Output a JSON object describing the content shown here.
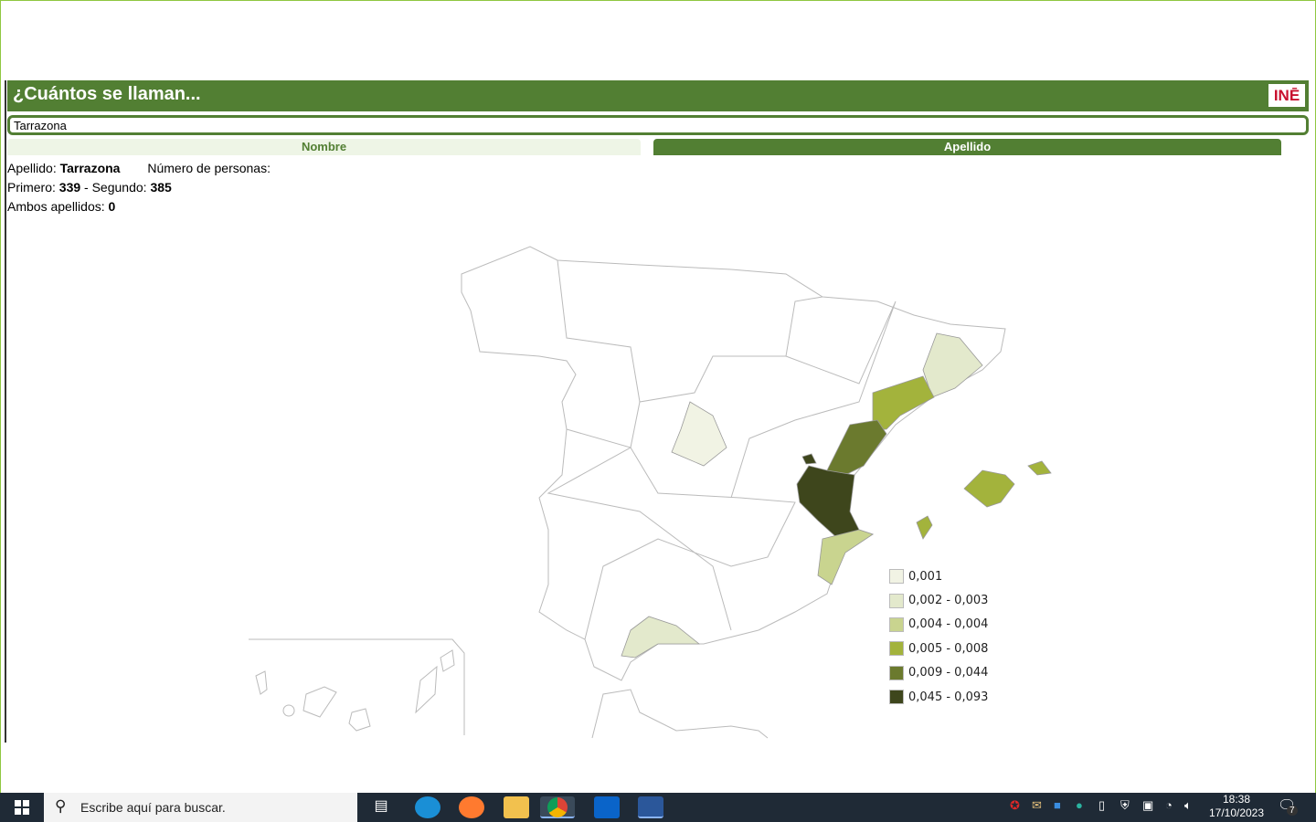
{
  "header": {
    "title": "¿Cuántos se llaman...",
    "logo": "INE"
  },
  "search": {
    "value": "Tarrazona"
  },
  "tabs": [
    {
      "label": "Nombre",
      "active": false
    },
    {
      "label": "Apellido",
      "active": true
    }
  ],
  "info": {
    "apellido_label": "Apellido:",
    "apellido": "Tarrazona",
    "numero_label": "Número de personas:",
    "primero_label": "Primero:",
    "primero": "339",
    "segundo_label": "- Segundo:",
    "segundo": "385",
    "ambos_label": "Ambos apellidos:",
    "ambos": "0"
  },
  "legend": [
    {
      "label": "0,001",
      "color": "#f1f3e4"
    },
    {
      "label": "0,002 - 0,003",
      "color": "#e3e9cc"
    },
    {
      "label": "0,004 - 0,004",
      "color": "#c9d48f"
    },
    {
      "label": "0,005 - 0,008",
      "color": "#a3b33c"
    },
    {
      "label": "0,009 - 0,044",
      "color": "#6b7a2e"
    },
    {
      "label": "0,045 - 0,093",
      "color": "#3e461c"
    }
  ],
  "taskbar": {
    "search_placeholder": "Escribe aquí para buscar.",
    "time": "18:38",
    "date": "17/10/2023",
    "notifications": "7"
  }
}
